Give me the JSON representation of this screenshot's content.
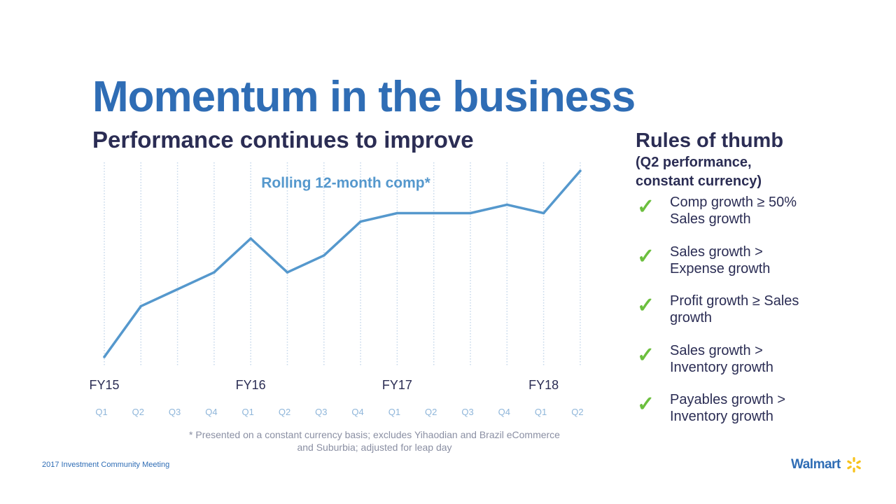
{
  "slide": {
    "title": "Momentum in the business",
    "subtitle": "Performance continues to improve"
  },
  "rules": {
    "title": "Rules of thumb",
    "subtitle": "(Q2 performance, constant currency)",
    "items": [
      {
        "text": "Comp growth ≥ 50% Sales growth"
      },
      {
        "text": "Sales growth > Expense growth"
      },
      {
        "text": "Profit growth ≥ Sales growth"
      },
      {
        "text": "Sales growth > Inventory growth"
      },
      {
        "text": "Payables growth > Inventory growth"
      }
    ]
  },
  "footnote": "* Presented on a constant currency basis; excludes Yihaodian and Brazil eCommerce and Suburbia; adjusted for leap day",
  "footer": {
    "meeting": "2017 Investment Community Meeting"
  },
  "logo": {
    "text": "Walmart",
    "icon": "spark-icon",
    "icon_color": "#f7c21a"
  },
  "colors": {
    "title": "#2f6db5",
    "text_dark": "#2b2d54",
    "line": "#5598cd",
    "check": "#6cbf3e",
    "grid": "#c5d7ea"
  },
  "chart_data": {
    "type": "line",
    "title": "Rolling 12-month comp*",
    "categories": [
      "Q1",
      "Q2",
      "Q3",
      "Q4",
      "Q1",
      "Q2",
      "Q3",
      "Q4",
      "Q1",
      "Q2",
      "Q3",
      "Q4",
      "Q1",
      "Q2"
    ],
    "year_labels": [
      {
        "label": "FY15",
        "index": 0
      },
      {
        "label": "FY16",
        "index": 4
      },
      {
        "label": "FY17",
        "index": 8
      },
      {
        "label": "FY18",
        "index": 12
      }
    ],
    "series": [
      {
        "values": [
          0.5,
          3.5,
          4.5,
          5.5,
          7.5,
          5.5,
          6.5,
          8.5,
          9.0,
          9.0,
          9.0,
          9.5,
          9.0,
          11.5
        ]
      }
    ],
    "ylim": [
      0,
      12
    ],
    "yaxis_visible": false,
    "grid": "vertical dotted"
  }
}
